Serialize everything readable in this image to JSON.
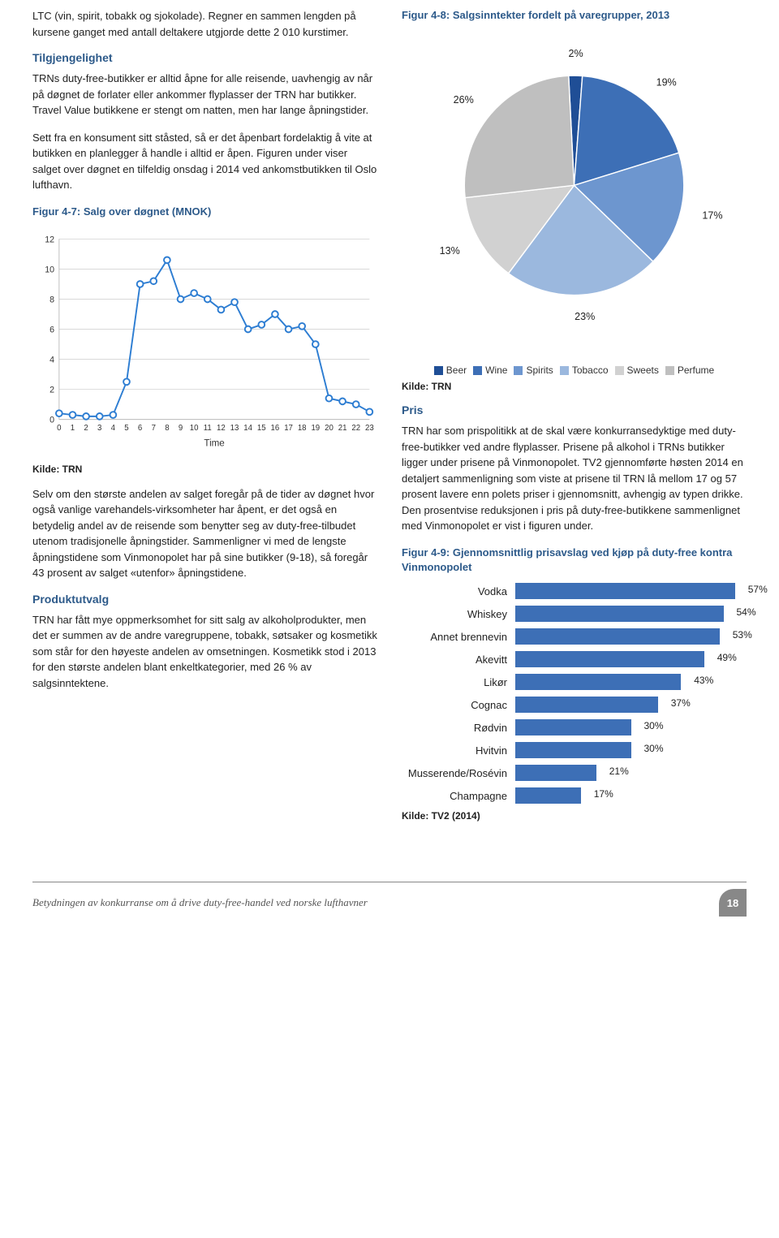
{
  "left": {
    "para_intro": "LTC (vin, spirit, tobakk og sjokolade). Regner en sammen lengden på kursene ganget med antall deltakere utgjorde dette 2 010 kurstimer.",
    "heading_tilgjengelighet": "Tilgjengelighet",
    "para_tilgjengelighet": "TRNs duty-free-butikker er alltid åpne for alle reisende, uavhengig av når på døgnet de forlater eller ankommer flyplasser der TRN har butikker. Travel Value butikkene er stengt om natten, men har lange åpningstider.",
    "para_sett": "Sett fra en konsument sitt ståsted, så er det åpenbart fordelaktig å vite at butikken en planlegger å handle i alltid er åpen. Figuren under viser salget over døgnet en tilfeldig onsdag i 2014 ved ankomstbutikken til Oslo lufthavn.",
    "fig47_title": "Figur 4-7: Salg over døgnet (MNOK)",
    "kilde_trn": "Kilde: TRN",
    "para_selvom": "Selv om den største andelen av salget foregår på de tider av døgnet hvor også vanlige varehandels-virksomheter har åpent, er det også en betydelig andel av de reisende som benytter seg av duty-free-tilbudet utenom tradisjonelle åpningstider. Sammenligner vi med de lengste åpningstidene som Vinmonopolet har på sine butikker (9-18), så foregår 43 prosent av salget «utenfor» åpningstidene.",
    "heading_produktutvalg": "Produktutvalg",
    "para_produktutvalg": "TRN har fått mye oppmerksomhet for sitt salg av alkoholprodukter, men det er summen av de andre varegruppene, tobakk, søtsaker og kosmetikk som står for den høyeste andelen av omsetningen. Kosmetikk stod i 2013 for den største andelen blant enkeltkategorier, med 26 % av salgsinntektene.",
    "line_chart": {
      "type": "line",
      "x_values": [
        0,
        1,
        2,
        3,
        4,
        5,
        6,
        7,
        8,
        9,
        10,
        11,
        12,
        13,
        14,
        15,
        16,
        17,
        18,
        19,
        20,
        21,
        22,
        23
      ],
      "y_values": [
        0.4,
        0.3,
        0.2,
        0.2,
        0.3,
        2.5,
        9.0,
        9.2,
        10.6,
        8.0,
        8.4,
        8.0,
        7.3,
        7.8,
        6.0,
        6.3,
        7.0,
        6.0,
        6.2,
        5.0,
        1.4,
        1.2,
        1.0,
        0.5
      ],
      "x_label": "Time",
      "ylim": [
        0,
        12
      ],
      "ytick_step": 2,
      "yticks_labels": [
        "0",
        "2",
        "4",
        "6",
        "8",
        "10",
        "12"
      ],
      "xticks_labels": [
        "0",
        "1",
        "2",
        "3",
        "4",
        "5",
        "6",
        "7",
        "8",
        "9",
        "10",
        "11",
        "12",
        "13",
        "14",
        "15",
        "16",
        "17",
        "18",
        "19",
        "20",
        "21",
        "22",
        "23"
      ],
      "line_color": "#2d7dd2",
      "marker_color": "#2d7dd2",
      "marker_fill": "#ffffff",
      "marker_size": 4,
      "line_width": 2,
      "grid_color": "#d9d9d9",
      "axis_color": "#bfbfbf",
      "plot_bg": "#ffffff",
      "label_fontsize": 11
    }
  },
  "right": {
    "fig48_title": "Figur 4-8: Salgsinntekter fordelt på varegrupper, 2013",
    "pie_chart": {
      "type": "pie",
      "slices": [
        {
          "label": "Beer",
          "value": 2,
          "color": "#1f4e96",
          "text": "2%"
        },
        {
          "label": "Wine",
          "value": 19,
          "color": "#3d6fb6",
          "text": "19%"
        },
        {
          "label": "Spirits",
          "value": 17,
          "color": "#6d96cf",
          "text": "17%"
        },
        {
          "label": "Tobacco",
          "value": 23,
          "color": "#9bb8de",
          "text": "23%"
        },
        {
          "label": "Sweets",
          "value": 13,
          "color": "#d1d1d1",
          "text": "13%"
        },
        {
          "label": "Perfume",
          "value": 26,
          "color": "#bfbfbf",
          "text": "26%"
        }
      ],
      "stroke": "#ffffff",
      "label_fontsize": 13,
      "legend_title_prefix": ""
    },
    "kilde_trn": "Kilde: TRN",
    "heading_pris": "Pris",
    "para_pris": "TRN har som prispolitikk at de skal være konkurransedyktige med duty-free-butikker ved andre flyplasser. Prisene på alkohol i TRNs butikker ligger under prisene på Vinmonopolet. TV2 gjennomførte høsten 2014 en detaljert sammenligning som viste at prisene til TRN lå mellom 17 og 57 prosent lavere enn polets priser i gjennomsnitt, avhengig av typen drikke. Den prosentvise reduksjonen i pris på duty-free-butikkene sammenlignet med Vinmonopolet er vist i figuren under.",
    "fig49_title": "Figur 4-9: Gjennomsnittlig prisavslag ved kjøp på duty-free kontra Vinmonopolet",
    "bar_chart": {
      "type": "bar",
      "max": 60,
      "bar_color": "#3d6fb6",
      "label_fontsize": 13,
      "bars": [
        {
          "label": "Vodka",
          "value": 57,
          "text": "57%"
        },
        {
          "label": "Whiskey",
          "value": 54,
          "text": "54%"
        },
        {
          "label": "Annet brennevin",
          "value": 53,
          "text": "53%"
        },
        {
          "label": "Akevitt",
          "value": 49,
          "text": "49%"
        },
        {
          "label": "Likør",
          "value": 43,
          "text": "43%"
        },
        {
          "label": "Cognac",
          "value": 37,
          "text": "37%"
        },
        {
          "label": "Rødvin",
          "value": 30,
          "text": "30%"
        },
        {
          "label": "Hvitvin",
          "value": 30,
          "text": "30%"
        },
        {
          "label": "Musserende/Rosévin",
          "value": 21,
          "text": "21%"
        },
        {
          "label": "Champagne",
          "value": 17,
          "text": "17%"
        }
      ]
    },
    "kilde_tv2": "Kilde: TV2 (2014)"
  },
  "footer": {
    "text": "Betydningen av konkurranse om å drive duty-free-handel ved norske lufthavner",
    "pagenum": "18"
  }
}
